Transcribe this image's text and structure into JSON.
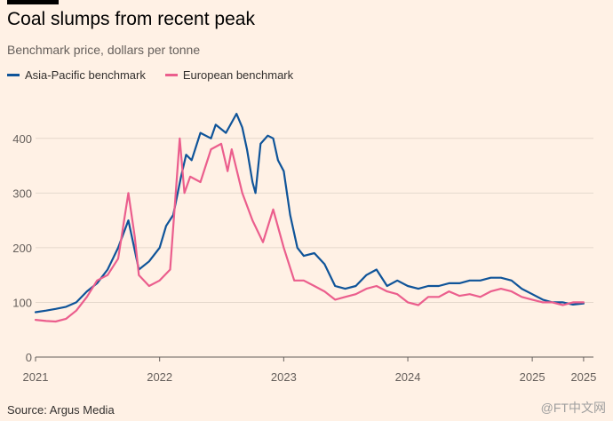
{
  "title": "Coal slumps from recent peak",
  "subtitle": "Benchmark price, dollars per tonne",
  "source": "Source: Argus Media",
  "watermark": "@FT中文网",
  "colors": {
    "background": "#fff1e5",
    "asia": "#0f5499",
    "europe": "#eb5e8d",
    "grid": "#e5d8cc",
    "axis": "#66605c"
  },
  "chart_data": {
    "type": "line",
    "title": "Coal slumps from recent peak",
    "subtitle": "Benchmark price, dollars per tonne",
    "xlabel": "",
    "ylabel": "",
    "ylim": [
      0,
      450
    ],
    "yticks": [
      0,
      100,
      200,
      300,
      400
    ],
    "ytick_labels": [
      "0",
      "100",
      "200",
      "300",
      "400"
    ],
    "xticks": [
      {
        "label": "2021",
        "x": "2021-01-01"
      },
      {
        "label": "2022",
        "x": "2022-01-01"
      },
      {
        "label": "2023",
        "x": "2023-01-01"
      },
      {
        "label": "2024",
        "x": "2024-01-01"
      },
      {
        "label": "2025",
        "x": "2025-01-01"
      },
      {
        "label": "2025",
        "x": "2025-06-01"
      }
    ],
    "xlim": [
      "2021-01-01",
      "2025-06-30"
    ],
    "grid": true,
    "legend": "top-left",
    "series": [
      {
        "name": "Asia-Pacific benchmark",
        "color": "#0f5499",
        "points": [
          [
            "2021-01-01",
            82
          ],
          [
            "2021-02-01",
            85
          ],
          [
            "2021-03-01",
            88
          ],
          [
            "2021-04-01",
            92
          ],
          [
            "2021-05-01",
            100
          ],
          [
            "2021-06-01",
            120
          ],
          [
            "2021-07-01",
            135
          ],
          [
            "2021-08-01",
            160
          ],
          [
            "2021-09-01",
            200
          ],
          [
            "2021-10-01",
            250
          ],
          [
            "2021-11-01",
            160
          ],
          [
            "2021-12-01",
            175
          ],
          [
            "2022-01-01",
            200
          ],
          [
            "2022-01-20",
            240
          ],
          [
            "2022-02-10",
            260
          ],
          [
            "2022-03-05",
            330
          ],
          [
            "2022-03-20",
            370
          ],
          [
            "2022-04-05",
            360
          ],
          [
            "2022-05-01",
            410
          ],
          [
            "2022-06-01",
            400
          ],
          [
            "2022-06-15",
            425
          ],
          [
            "2022-07-15",
            410
          ],
          [
            "2022-08-15",
            445
          ],
          [
            "2022-09-01",
            420
          ],
          [
            "2022-09-15",
            380
          ],
          [
            "2022-10-01",
            320
          ],
          [
            "2022-10-10",
            300
          ],
          [
            "2022-10-25",
            390
          ],
          [
            "2022-11-15",
            405
          ],
          [
            "2022-12-01",
            400
          ],
          [
            "2022-12-15",
            360
          ],
          [
            "2023-01-01",
            340
          ],
          [
            "2023-01-20",
            260
          ],
          [
            "2023-02-10",
            200
          ],
          [
            "2023-03-01",
            185
          ],
          [
            "2023-04-01",
            190
          ],
          [
            "2023-05-01",
            170
          ],
          [
            "2023-06-01",
            130
          ],
          [
            "2023-07-01",
            125
          ],
          [
            "2023-08-01",
            130
          ],
          [
            "2023-09-01",
            150
          ],
          [
            "2023-10-01",
            160
          ],
          [
            "2023-11-01",
            130
          ],
          [
            "2023-12-01",
            140
          ],
          [
            "2024-01-01",
            130
          ],
          [
            "2024-02-01",
            125
          ],
          [
            "2024-03-01",
            130
          ],
          [
            "2024-04-01",
            130
          ],
          [
            "2024-05-01",
            135
          ],
          [
            "2024-06-01",
            135
          ],
          [
            "2024-07-01",
            140
          ],
          [
            "2024-08-01",
            140
          ],
          [
            "2024-09-01",
            145
          ],
          [
            "2024-10-01",
            145
          ],
          [
            "2024-11-01",
            140
          ],
          [
            "2024-12-01",
            125
          ],
          [
            "2025-01-01",
            115
          ],
          [
            "2025-02-01",
            105
          ],
          [
            "2025-03-01",
            100
          ],
          [
            "2025-04-01",
            100
          ],
          [
            "2025-05-01",
            96
          ],
          [
            "2025-06-01",
            98
          ]
        ]
      },
      {
        "name": "European benchmark",
        "color": "#eb5e8d",
        "points": [
          [
            "2021-01-01",
            68
          ],
          [
            "2021-02-01",
            66
          ],
          [
            "2021-03-01",
            65
          ],
          [
            "2021-04-01",
            70
          ],
          [
            "2021-05-01",
            85
          ],
          [
            "2021-06-01",
            110
          ],
          [
            "2021-07-01",
            140
          ],
          [
            "2021-08-01",
            150
          ],
          [
            "2021-09-01",
            180
          ],
          [
            "2021-10-01",
            300
          ],
          [
            "2021-10-20",
            220
          ],
          [
            "2021-11-01",
            150
          ],
          [
            "2021-12-01",
            130
          ],
          [
            "2022-01-01",
            140
          ],
          [
            "2022-02-01",
            160
          ],
          [
            "2022-03-01",
            400
          ],
          [
            "2022-03-15",
            300
          ],
          [
            "2022-04-01",
            330
          ],
          [
            "2022-05-01",
            320
          ],
          [
            "2022-06-01",
            380
          ],
          [
            "2022-07-01",
            390
          ],
          [
            "2022-07-20",
            340
          ],
          [
            "2022-08-01",
            380
          ],
          [
            "2022-09-01",
            300
          ],
          [
            "2022-10-01",
            250
          ],
          [
            "2022-11-01",
            210
          ],
          [
            "2022-12-01",
            270
          ],
          [
            "2023-01-01",
            200
          ],
          [
            "2023-02-01",
            140
          ],
          [
            "2023-03-01",
            140
          ],
          [
            "2023-04-01",
            130
          ],
          [
            "2023-05-01",
            120
          ],
          [
            "2023-06-01",
            105
          ],
          [
            "2023-07-01",
            110
          ],
          [
            "2023-08-01",
            115
          ],
          [
            "2023-09-01",
            125
          ],
          [
            "2023-10-01",
            130
          ],
          [
            "2023-11-01",
            120
          ],
          [
            "2023-12-01",
            115
          ],
          [
            "2024-01-01",
            100
          ],
          [
            "2024-02-01",
            95
          ],
          [
            "2024-03-01",
            110
          ],
          [
            "2024-04-01",
            110
          ],
          [
            "2024-05-01",
            120
          ],
          [
            "2024-06-01",
            112
          ],
          [
            "2024-07-01",
            115
          ],
          [
            "2024-08-01",
            110
          ],
          [
            "2024-09-01",
            120
          ],
          [
            "2024-10-01",
            125
          ],
          [
            "2024-11-01",
            120
          ],
          [
            "2024-12-01",
            110
          ],
          [
            "2025-01-01",
            105
          ],
          [
            "2025-02-01",
            100
          ],
          [
            "2025-03-01",
            100
          ],
          [
            "2025-04-01",
            95
          ],
          [
            "2025-05-01",
            100
          ],
          [
            "2025-06-01",
            100
          ]
        ]
      }
    ]
  }
}
